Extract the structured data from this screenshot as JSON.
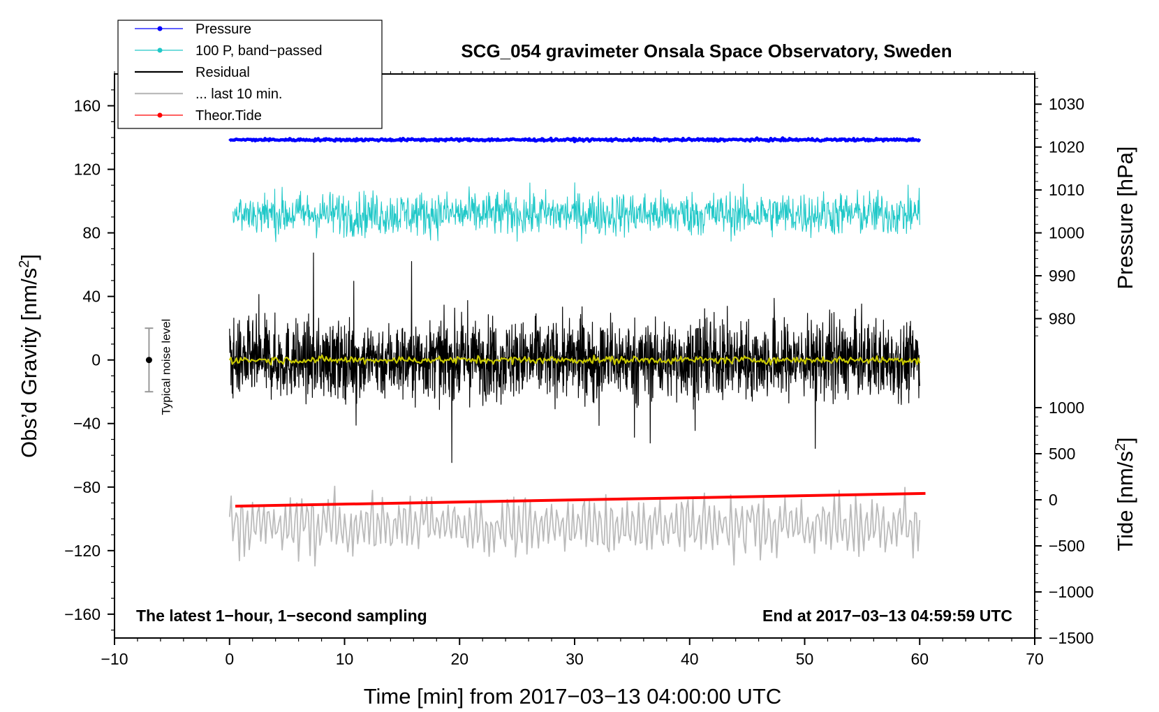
{
  "chart_data": {
    "type": "line",
    "title": "SCG_054 gravimeter Onsala Space Observatory, Sweden",
    "xlabel": "Time [min] from 2017−03−13 04:00:00 UTC",
    "ylabel_main": "Obs’d Gravity [nm/s",
    "ylabel_main_sup": "2",
    "ylabel_main_close": "]",
    "ylabel_pressure": "Pressure [hPa]",
    "ylabel_tide": "Tide [nm/s",
    "ylabel_tide_sup": "2",
    "ylabel_tide_close": "]",
    "xlim": [
      -10,
      70
    ],
    "ylim": [
      -175,
      180
    ],
    "x_ticks": [
      "−10",
      "0",
      "10",
      "20",
      "30",
      "40",
      "50",
      "60",
      "70"
    ],
    "x_tick_values": [
      -10,
      0,
      10,
      20,
      30,
      40,
      50,
      60,
      70
    ],
    "y_ticks": [
      "160",
      "120",
      "80",
      "40",
      "0",
      "−40",
      "−80",
      "−120",
      "−160"
    ],
    "y_tick_values": [
      160,
      120,
      80,
      40,
      0,
      -40,
      -80,
      -120,
      -160
    ],
    "pressure_ticks": [
      "1030",
      "1020",
      "1010",
      "1000",
      "990",
      "980"
    ],
    "pressure_tick_values": [
      1030,
      1020,
      1010,
      1000,
      990,
      980
    ],
    "pressure_axis_map": {
      "hpa_a": 1000,
      "g_a": 80,
      "hpa_b": 1020,
      "g_b": 134
    },
    "tide_ticks": [
      "1000",
      "500",
      "0",
      "−500",
      "−1000",
      "−1500"
    ],
    "tide_tick_values": [
      1000,
      500,
      0,
      -500,
      -1000,
      -1500
    ],
    "tide_axis_map": {
      "tide_a": 0,
      "g_a": -88,
      "tide_b": -1500,
      "g_b": -175
    },
    "legend": [
      {
        "label": "Pressure",
        "color": "#0000ff",
        "marker": true
      },
      {
        "label": "100 P, band−passed",
        "color": "#20c8c8",
        "marker": true
      },
      {
        "label": "Residual",
        "color": "#000000",
        "marker": false
      },
      {
        "label": "... last 10 min.",
        "color": "#bbbbbb",
        "marker": false
      },
      {
        "label": "Theor.Tide",
        "color": "#ff0000",
        "marker": true
      }
    ],
    "series": [
      {
        "name": "Pressure",
        "color": "#0000ff",
        "x_range": [
          0,
          60
        ],
        "level": 1021.7,
        "noise": 0.15
      },
      {
        "name": "100 P, band-passed",
        "color": "#20c8c8",
        "x_range": [
          0.3,
          60
        ],
        "level": 92,
        "noise": 7
      },
      {
        "name": "Residual",
        "color": "#000000",
        "x_range": [
          0,
          60
        ],
        "level": 0,
        "noise": 12
      },
      {
        "name": "Residual (smoothed)",
        "color": "#c8c800",
        "x_range": [
          0,
          60
        ],
        "level": 0,
        "noise": 1.2
      },
      {
        "name": "... last 10 min.",
        "color": "#bbbbbb",
        "x_range": [
          0,
          60
        ],
        "level": -104,
        "noise": 14
      },
      {
        "name": "Theor.Tide",
        "color": "#ff0000",
        "x": [
          0.5,
          60.5
        ],
        "y": [
          -92,
          -84
        ]
      }
    ],
    "noise_bar": {
      "label": "Typical noise level",
      "x": -7,
      "y": 0,
      "half_range": 20
    },
    "annotation_left": "The latest 1−hour, 1−second sampling",
    "annotation_right": "End at 2017−03−13 04:59:59 UTC"
  }
}
